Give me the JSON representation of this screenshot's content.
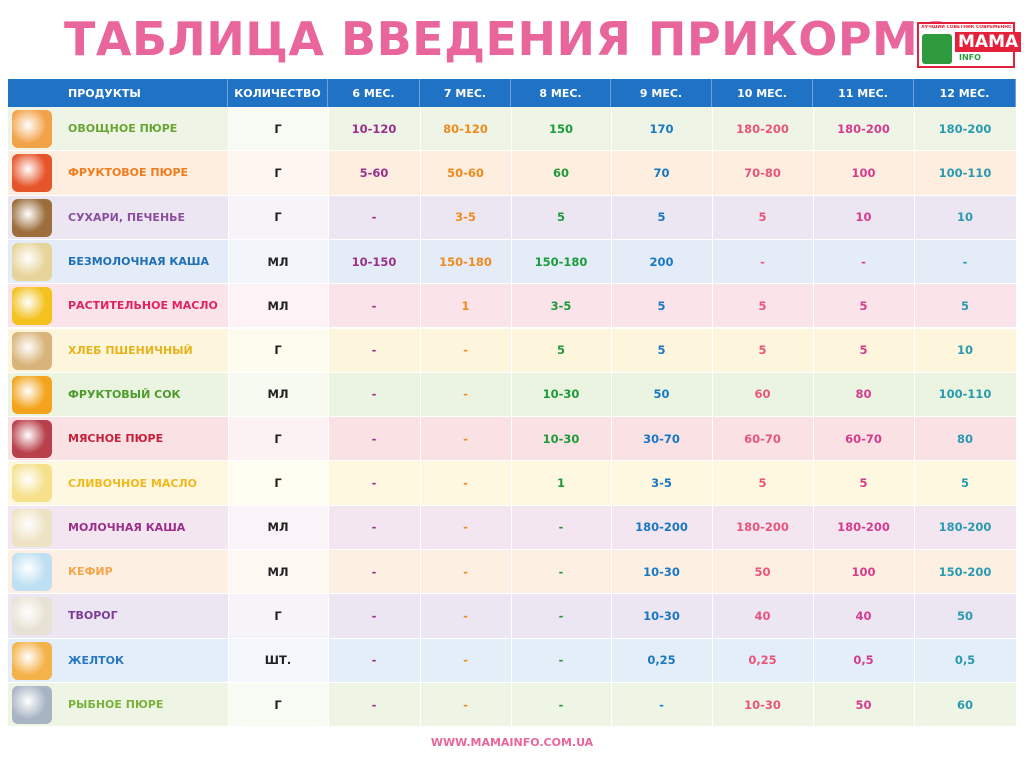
{
  "header": {
    "title": "ТАБЛИЦА ВВЕДЕНИЯ ПРИКОРМА",
    "logo": {
      "tagline": "ЛУЧШИЙ СОВЕТНИК СОВРЕМЕННОЙ МАМЫ",
      "name": "МАМА",
      "suffix": "INFO"
    }
  },
  "table": {
    "columns": [
      "ПРОДУКТЫ",
      "КОЛИЧЕСТВО",
      "6 МЕС.",
      "7 МЕС.",
      "8 МЕС.",
      "9 МЕС.",
      "10 МЕС.",
      "11 МЕС.",
      "12 МЕС."
    ],
    "rows": [
      {
        "product": "ОВОЩНОЕ ПЮРЕ",
        "quantity": "Г",
        "values": [
          "10-120",
          "80-120",
          "150",
          "170",
          "180-200",
          "180-200",
          "180-200"
        ]
      },
      {
        "product": "ФРУКТОВОЕ ПЮРЕ",
        "quantity": "Г",
        "values": [
          "5-60",
          "50-60",
          "60",
          "70",
          "70-80",
          "100",
          "100-110"
        ]
      },
      {
        "product": "СУХАРИ, ПЕЧЕНЬЕ",
        "quantity": "Г",
        "values": [
          "-",
          "3-5",
          "5",
          "5",
          "5",
          "10",
          "10"
        ]
      },
      {
        "product": "БЕЗМОЛОЧНАЯ КАША",
        "quantity": "МЛ",
        "values": [
          "10-150",
          "150-180",
          "150-180",
          "200",
          "-",
          "-",
          "-"
        ]
      },
      {
        "product": "РАСТИТЕЛЬНОЕ МАСЛО",
        "quantity": "МЛ",
        "values": [
          "-",
          "1",
          "3-5",
          "5",
          "5",
          "5",
          "5"
        ]
      },
      {
        "product": "ХЛЕБ ПШЕНИЧНЫЙ",
        "quantity": "Г",
        "values": [
          "-",
          "-",
          "5",
          "5",
          "5",
          "5",
          "10"
        ]
      },
      {
        "product": "ФРУКТОВЫЙ СОК",
        "quantity": "МЛ",
        "values": [
          "-",
          "-",
          "10-30",
          "50",
          "60",
          "80",
          "100-110"
        ]
      },
      {
        "product": "МЯСНОЕ ПЮРЕ",
        "quantity": "Г",
        "values": [
          "-",
          "-",
          "10-30",
          "30-70",
          "60-70",
          "60-70",
          "80"
        ]
      },
      {
        "product": "СЛИВОЧНОЕ МАСЛО",
        "quantity": "Г",
        "values": [
          "-",
          "-",
          "1",
          "3-5",
          "5",
          "5",
          "5"
        ]
      },
      {
        "product": "МОЛОЧНАЯ КАША",
        "quantity": "МЛ",
        "values": [
          "-",
          "-",
          "-",
          "180-200",
          "180-200",
          "180-200",
          "180-200"
        ]
      },
      {
        "product": "КЕФИР",
        "quantity": "МЛ",
        "values": [
          "-",
          "-",
          "-",
          "10-30",
          "50",
          "100",
          "150-200"
        ]
      },
      {
        "product": "ТВОРОГ",
        "quantity": "Г",
        "values": [
          "-",
          "-",
          "-",
          "10-30",
          "40",
          "40",
          "50"
        ]
      },
      {
        "product": "ЖЕЛТОК",
        "quantity": "ШТ.",
        "values": [
          "-",
          "-",
          "-",
          "0,25",
          "0,25",
          "0,5",
          "0,5"
        ]
      },
      {
        "product": "РЫБНОЕ ПЮРЕ",
        "quantity": "Г",
        "values": [
          "-",
          "-",
          "-",
          "-",
          "10-30",
          "50",
          "60"
        ]
      }
    ]
  },
  "footer": {
    "url": "WWW.MAMAINFO.COM.UA"
  }
}
